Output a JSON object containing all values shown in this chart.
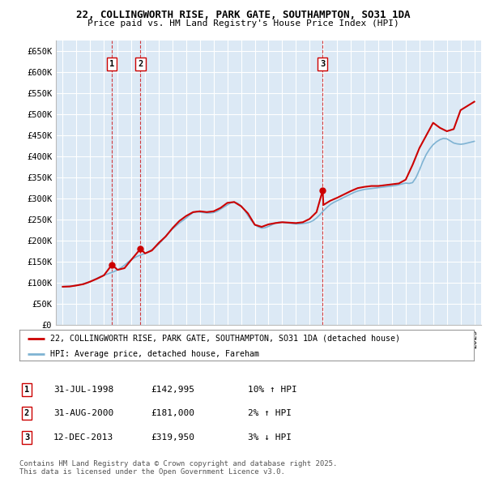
{
  "title": "22, COLLINGWORTH RISE, PARK GATE, SOUTHAMPTON, SO31 1DA",
  "subtitle": "Price paid vs. HM Land Registry's House Price Index (HPI)",
  "ylim": [
    0,
    675000
  ],
  "yticks": [
    0,
    50000,
    100000,
    150000,
    200000,
    250000,
    300000,
    350000,
    400000,
    450000,
    500000,
    550000,
    600000,
    650000
  ],
  "ytick_labels": [
    "£0",
    "£50K",
    "£100K",
    "£150K",
    "£200K",
    "£250K",
    "£300K",
    "£350K",
    "£400K",
    "£450K",
    "£500K",
    "£550K",
    "£600K",
    "£650K"
  ],
  "xlim_start": 1994.5,
  "xlim_end": 2025.5,
  "background_color": "#dce9f5",
  "grid_color": "#ffffff",
  "purchase_dates": [
    1998.58,
    2000.67,
    2013.95
  ],
  "purchase_prices": [
    142995,
    181000,
    319950
  ],
  "purchase_labels": [
    "1",
    "2",
    "3"
  ],
  "legend_line1": "22, COLLINGWORTH RISE, PARK GATE, SOUTHAMPTON, SO31 1DA (detached house)",
  "legend_line2": "HPI: Average price, detached house, Fareham",
  "footer1": "Contains HM Land Registry data © Crown copyright and database right 2025.",
  "footer2": "This data is licensed under the Open Government Licence v3.0.",
  "red_line_color": "#cc0000",
  "blue_line_color": "#7fb3d3",
  "hpi_x": [
    1995.0,
    1995.25,
    1995.5,
    1995.75,
    1996.0,
    1996.25,
    1996.5,
    1996.75,
    1997.0,
    1997.25,
    1997.5,
    1997.75,
    1998.0,
    1998.25,
    1998.5,
    1998.75,
    1999.0,
    1999.25,
    1999.5,
    1999.75,
    2000.0,
    2000.25,
    2000.5,
    2000.75,
    2001.0,
    2001.25,
    2001.5,
    2001.75,
    2002.0,
    2002.25,
    2002.5,
    2002.75,
    2003.0,
    2003.25,
    2003.5,
    2003.75,
    2004.0,
    2004.25,
    2004.5,
    2004.75,
    2005.0,
    2005.25,
    2005.5,
    2005.75,
    2006.0,
    2006.25,
    2006.5,
    2006.75,
    2007.0,
    2007.25,
    2007.5,
    2007.75,
    2008.0,
    2008.25,
    2008.5,
    2008.75,
    2009.0,
    2009.25,
    2009.5,
    2009.75,
    2010.0,
    2010.25,
    2010.5,
    2010.75,
    2011.0,
    2011.25,
    2011.5,
    2011.75,
    2012.0,
    2012.25,
    2012.5,
    2012.75,
    2013.0,
    2013.25,
    2013.5,
    2013.75,
    2014.0,
    2014.25,
    2014.5,
    2014.75,
    2015.0,
    2015.25,
    2015.5,
    2015.75,
    2016.0,
    2016.25,
    2016.5,
    2016.75,
    2017.0,
    2017.25,
    2017.5,
    2017.75,
    2018.0,
    2018.25,
    2018.5,
    2018.75,
    2019.0,
    2019.25,
    2019.5,
    2019.75,
    2020.0,
    2020.25,
    2020.5,
    2020.75,
    2021.0,
    2021.25,
    2021.5,
    2021.75,
    2022.0,
    2022.25,
    2022.5,
    2022.75,
    2023.0,
    2023.25,
    2023.5,
    2023.75,
    2024.0,
    2024.25,
    2024.5,
    2024.75,
    2025.0
  ],
  "hpi_y": [
    91000,
    91500,
    92000,
    92500,
    94000,
    96000,
    98000,
    100000,
    103000,
    107000,
    111000,
    115000,
    118000,
    121000,
    124000,
    127000,
    131000,
    136000,
    142000,
    149000,
    155000,
    160000,
    164000,
    167000,
    170000,
    174000,
    179000,
    185000,
    192000,
    201000,
    211000,
    220000,
    228000,
    235000,
    242000,
    248000,
    254000,
    261000,
    267000,
    269000,
    268000,
    267000,
    266000,
    266000,
    267000,
    270000,
    275000,
    280000,
    285000,
    290000,
    292000,
    289000,
    283000,
    273000,
    260000,
    248000,
    238000,
    233000,
    230000,
    231000,
    234000,
    238000,
    242000,
    244000,
    244000,
    243000,
    242000,
    241000,
    240000,
    240000,
    241000,
    242000,
    244000,
    248000,
    254000,
    262000,
    271000,
    279000,
    286000,
    291000,
    295000,
    299000,
    303000,
    307000,
    311000,
    315000,
    318000,
    320000,
    322000,
    323000,
    324000,
    325000,
    326000,
    327000,
    328000,
    329000,
    330000,
    331000,
    333000,
    335000,
    337000,
    336000,
    338000,
    350000,
    368000,
    388000,
    405000,
    418000,
    428000,
    435000,
    440000,
    443000,
    442000,
    437000,
    432000,
    430000,
    429000,
    430000,
    432000,
    434000,
    436000
  ],
  "price_x": [
    1995.0,
    1995.5,
    1996.0,
    1996.5,
    1997.0,
    1997.5,
    1998.0,
    1998.58,
    1999.0,
    1999.5,
    2000.0,
    2000.67,
    2001.0,
    2001.5,
    2002.0,
    2002.5,
    2003.0,
    2003.5,
    2004.0,
    2004.5,
    2005.0,
    2005.5,
    2006.0,
    2006.5,
    2007.0,
    2007.5,
    2008.0,
    2008.5,
    2009.0,
    2009.5,
    2010.0,
    2010.5,
    2011.0,
    2011.5,
    2012.0,
    2012.5,
    2013.0,
    2013.5,
    2013.95,
    2014.0,
    2014.5,
    2015.0,
    2015.5,
    2016.0,
    2016.5,
    2017.0,
    2017.5,
    2018.0,
    2018.5,
    2019.0,
    2019.5,
    2020.0,
    2020.5,
    2021.0,
    2021.5,
    2022.0,
    2022.5,
    2023.0,
    2023.5,
    2024.0,
    2024.5,
    2025.0
  ],
  "price_y": [
    91000,
    91500,
    94000,
    97000,
    103000,
    110000,
    118000,
    142995,
    131000,
    135000,
    155000,
    181000,
    170000,
    177000,
    195000,
    210000,
    230000,
    247000,
    259000,
    268000,
    270000,
    268000,
    270000,
    278000,
    290000,
    292000,
    282000,
    265000,
    238000,
    233000,
    239000,
    242000,
    244000,
    243000,
    242000,
    244000,
    252000,
    268000,
    319950,
    285000,
    295000,
    302000,
    310000,
    318000,
    325000,
    328000,
    330000,
    330000,
    332000,
    334000,
    336000,
    345000,
    380000,
    420000,
    450000,
    480000,
    468000,
    460000,
    465000,
    510000,
    520000,
    530000
  ],
  "row_data": [
    [
      "1",
      "31-JUL-1998",
      "£142,995",
      "10% ↑ HPI"
    ],
    [
      "2",
      "31-AUG-2000",
      "£181,000",
      "2% ↑ HPI"
    ],
    [
      "3",
      "12-DEC-2013",
      "£319,950",
      "3% ↓ HPI"
    ]
  ]
}
